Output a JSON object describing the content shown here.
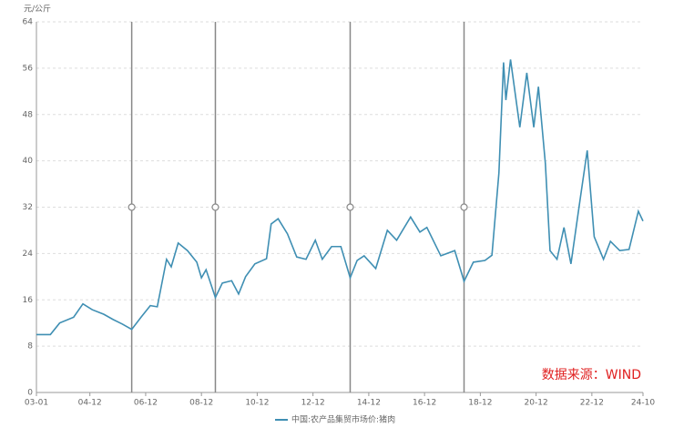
{
  "chart_data": {
    "type": "line",
    "y_label": "元/公斤",
    "annotation": "数据来源：WIND",
    "x": [
      "03-01",
      "03-07",
      "03-11",
      "04-05",
      "04-09",
      "05-01",
      "05-06",
      "05-10",
      "06-02",
      "06-06",
      "06-10",
      "07-02",
      "07-05",
      "07-09",
      "07-11",
      "08-02",
      "08-06",
      "08-10",
      "08-12",
      "09-02",
      "09-06",
      "09-09",
      "10-01",
      "10-04",
      "10-07",
      "10-11",
      "11-04",
      "11-06",
      "11-09",
      "12-01",
      "12-05",
      "12-09",
      "13-01",
      "13-04",
      "13-08",
      "13-12",
      "14-04",
      "14-07",
      "14-10",
      "15-03",
      "15-08",
      "15-12",
      "16-06",
      "16-10",
      "17-01",
      "17-07",
      "18-01",
      "18-05",
      "18-09",
      "19-02",
      "19-05",
      "19-08",
      "19-10",
      "19-11",
      "20-01",
      "20-05",
      "20-08",
      "20-11",
      "21-01",
      "21-04",
      "21-06",
      "21-09",
      "21-12",
      "22-03",
      "22-07",
      "22-10",
      "23-01",
      "23-05",
      "23-08",
      "23-12",
      "24-04",
      "24-08",
      "24-10"
    ],
    "series": [
      {
        "name": "中国:农产品集贸市场价:猪肉",
        "color": "#3f8fb3",
        "values": [
          10,
          10,
          12,
          13,
          15.3,
          14.3,
          13.5,
          12.6,
          11.8,
          10.9,
          13,
          15,
          14.8,
          23,
          21.7,
          25.8,
          24.5,
          22.5,
          19.8,
          21.2,
          16.4,
          18.9,
          19.3,
          17,
          20,
          22.2,
          23.1,
          29.1,
          30,
          27.4,
          23.4,
          23,
          26.3,
          23,
          25.2,
          25.2,
          19.8,
          22.8,
          23.6,
          21.4,
          28,
          26.3,
          30.3,
          27.7,
          28.5,
          23.6,
          24.5,
          19.2,
          22.5,
          22.8,
          23.7,
          37.9,
          57,
          50.5,
          57.5,
          45.8,
          55.2,
          45.8,
          52.8,
          39.5,
          24.5,
          23,
          28.5,
          22.2,
          33.5,
          41.8,
          26.9,
          23,
          26.1,
          24.5,
          24.7,
          31.3,
          29.6
        ]
      }
    ],
    "markers": [
      {
        "x": "06-06",
        "y": 32
      },
      {
        "x": "09-06",
        "y": 32
      },
      {
        "x": "14-04",
        "y": 32
      },
      {
        "x": "18-05",
        "y": 32
      }
    ],
    "xlim": [
      "03-01",
      "24-10"
    ],
    "xticks": [
      "03-01",
      "04-12",
      "06-12",
      "08-12",
      "10-12",
      "12-12",
      "14-12",
      "16-12",
      "18-12",
      "20-12",
      "22-12",
      "24-10"
    ],
    "ylim": [
      0,
      64
    ],
    "yticks": [
      0,
      8,
      16,
      24,
      32,
      40,
      48,
      56,
      64
    ],
    "grid": true
  }
}
